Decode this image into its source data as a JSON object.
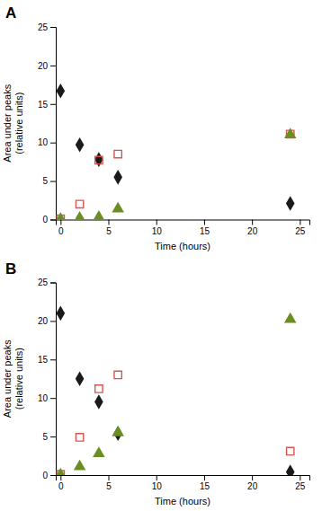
{
  "chart_data": [
    {
      "type": "scatter",
      "title": "A",
      "x": [
        0,
        2,
        4,
        6,
        24
      ],
      "series": [
        {
          "color": "#1a1a1a",
          "marker": "diamond",
          "values": [
            16.7,
            9.7,
            7.8,
            5.5,
            2.1
          ]
        },
        {
          "color": "#d9534f",
          "marker": "square-open",
          "values": [
            0.1,
            2.0,
            7.7,
            8.5,
            11.1
          ]
        },
        {
          "color": "#6b8e23",
          "marker": "triangle",
          "values": [
            0.05,
            0.2,
            0.3,
            1.4,
            11.0
          ]
        }
      ],
      "xlim": [
        -0.5,
        26
      ],
      "xticks": [
        0,
        5,
        10,
        15,
        20,
        25
      ],
      "ylim": [
        0,
        25
      ],
      "yticks": [
        0,
        5,
        10,
        15,
        20,
        25
      ],
      "xlabel": "Time (hours)",
      "ylabel": "Area under peaks\n(relative units)",
      "grid": false
    },
    {
      "type": "scatter",
      "title": "B",
      "x": [
        0,
        2,
        4,
        6,
        24
      ],
      "series": [
        {
          "color": "#1a1a1a",
          "marker": "diamond",
          "values": [
            21.0,
            12.5,
            9.5,
            5.4,
            0.4
          ]
        },
        {
          "color": "#d9534f",
          "marker": "square-open",
          "values": [
            0.1,
            4.9,
            11.2,
            13.0,
            3.1
          ]
        },
        {
          "color": "#6b8e23",
          "marker": "triangle",
          "values": [
            0.05,
            1.1,
            2.8,
            5.5,
            20.2
          ]
        }
      ],
      "xlim": [
        -0.5,
        26
      ],
      "xticks": [
        0,
        5,
        10,
        15,
        20,
        25
      ],
      "ylim": [
        0,
        25
      ],
      "yticks": [
        0,
        5,
        10,
        15,
        20,
        25
      ],
      "xlabel": "Time (hours)",
      "ylabel": "Area under peaks\n(relative units)",
      "grid": false
    }
  ]
}
